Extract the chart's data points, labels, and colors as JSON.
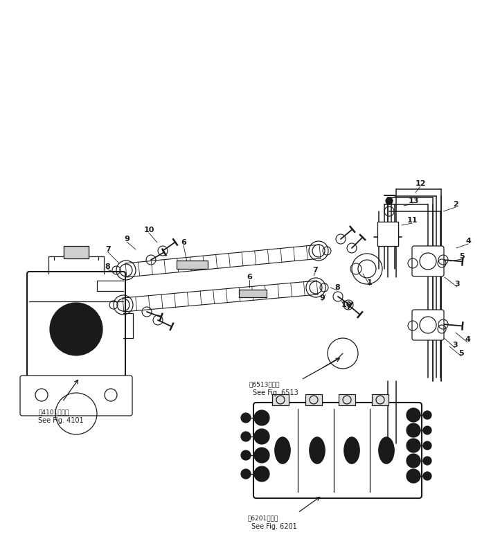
{
  "bg_color": "#ffffff",
  "line_color": "#1a1a1a",
  "figsize": [
    6.96,
    7.88
  ],
  "dpi": 100,
  "labels": {
    "fig4101_jp": "第4101図参照",
    "fig4101_en": "See Fig. 4101",
    "fig6513_jp": "第6513図参照",
    "fig6513_en": "See Fig. 6513",
    "fig6201_jp": "第6201図参照",
    "fig6201_en": "See Fig. 6201"
  }
}
